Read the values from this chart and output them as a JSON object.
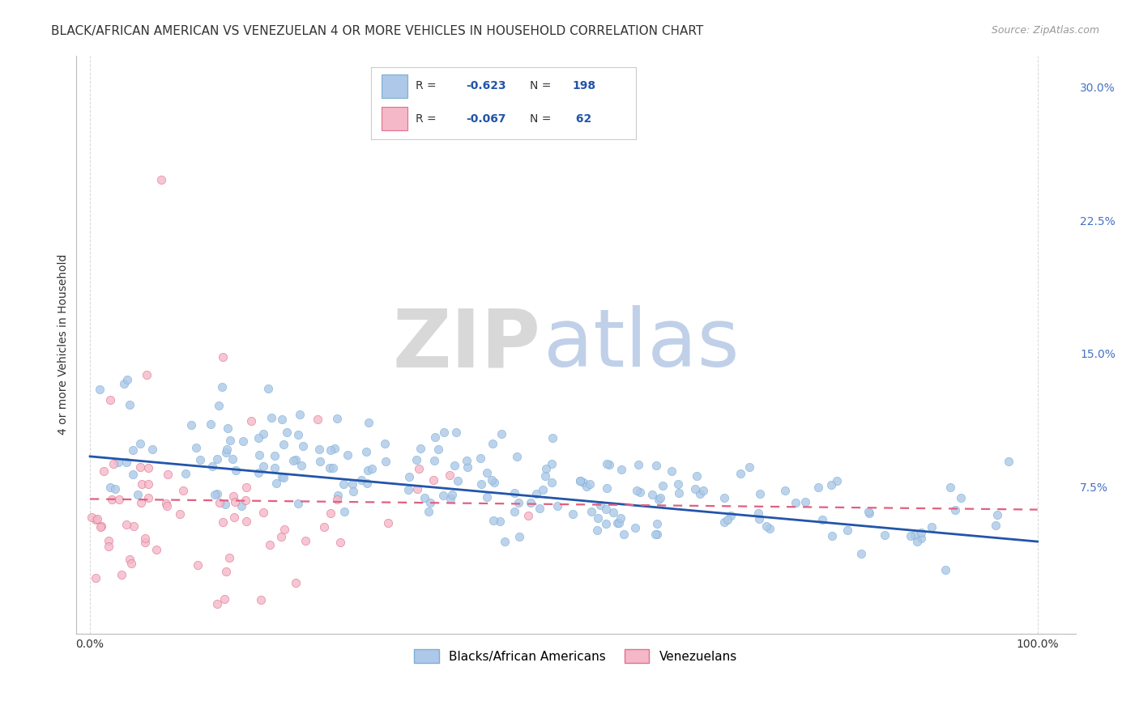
{
  "title": "BLACK/AFRICAN AMERICAN VS VENEZUELAN 4 OR MORE VEHICLES IN HOUSEHOLD CORRELATION CHART",
  "source": "Source: ZipAtlas.com",
  "ylabel": "4 or more Vehicles in Household",
  "blue_R": -0.623,
  "blue_N": 198,
  "pink_R": -0.067,
  "pink_N": 62,
  "blue_color": "#adc8e8",
  "blue_edge": "#7bafd4",
  "blue_line_color": "#2255aa",
  "pink_color": "#f4b8c8",
  "pink_edge": "#e07090",
  "pink_line_color": "#e06080",
  "watermark_zip": "ZIP",
  "watermark_atlas": "atlas",
  "watermark_zip_color": "#d8d8d8",
  "watermark_atlas_color": "#c0d0e8",
  "legend_labels": [
    "Blacks/African Americans",
    "Venezuelans"
  ],
  "ytick_labels": [
    "7.5%",
    "15.0%",
    "22.5%",
    "30.0%"
  ],
  "ytick_values": [
    0.075,
    0.15,
    0.225,
    0.3
  ],
  "xtick_labels": [
    "0.0%",
    "100.0%"
  ],
  "xtick_values": [
    0.0,
    1.0
  ],
  "xlim": [
    -0.015,
    1.04
  ],
  "ylim": [
    -0.008,
    0.318
  ],
  "background_color": "#ffffff",
  "grid_color": "#cccccc",
  "title_fontsize": 11,
  "axis_label_fontsize": 10,
  "tick_fontsize": 10,
  "right_tick_color": "#4472c4",
  "seed": 42,
  "blue_intercept": 0.092,
  "blue_slope": -0.048,
  "pink_intercept": 0.068,
  "pink_slope": -0.006,
  "legend_R_color": "#2255aa",
  "legend_N_color": "#2255aa"
}
